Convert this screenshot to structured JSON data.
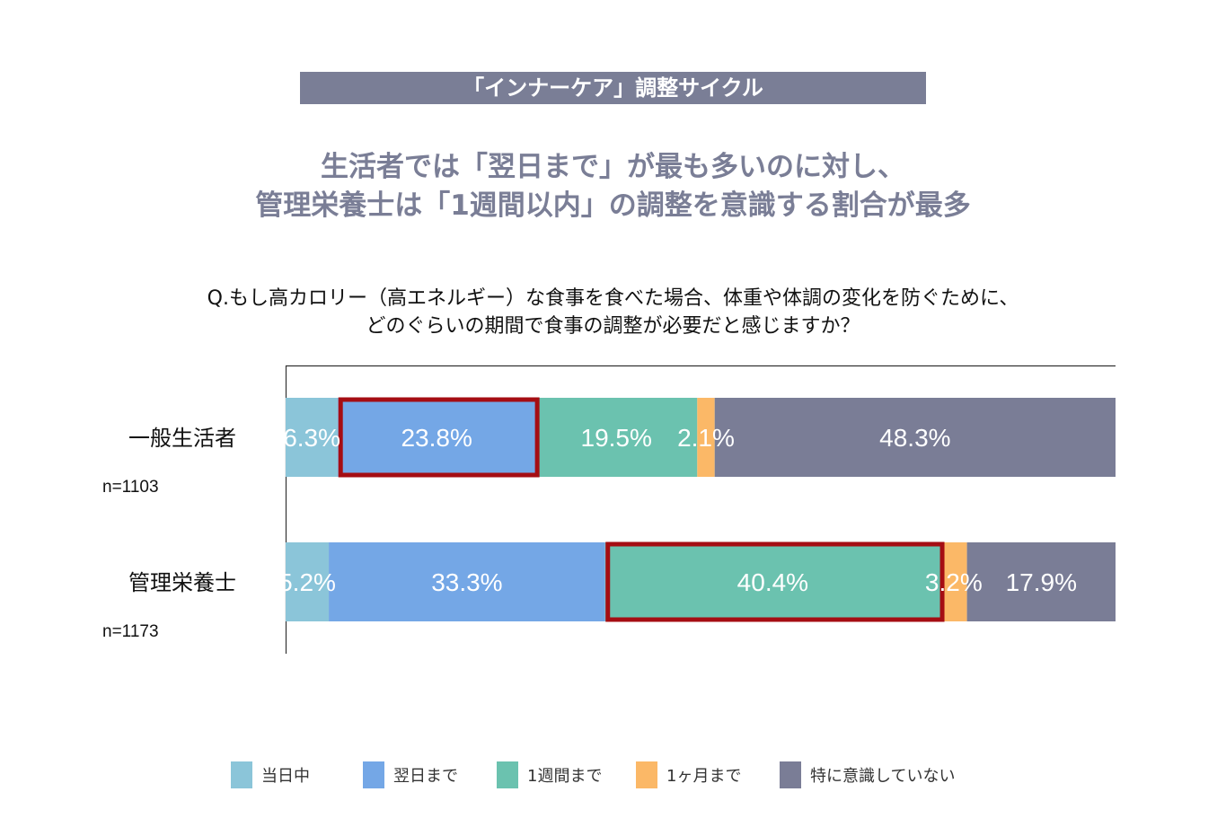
{
  "header": {
    "title": "「インナーケア」調整サイクル",
    "headline_line1": "生活者では「翌日まで」が最も多いのに対し、",
    "headline_line2": "管理栄養士は「1週間以内」の調整を意識する割合が最多"
  },
  "question": {
    "line1": "Q.もし高カロリー（高エネルギー）な食事を食べた場合、体重や体調の変化を防ぐために、",
    "line2": "どのぐらいの期間で食事の調整が必要だと感じますか？"
  },
  "chart_data": {
    "type": "bar",
    "orientation": "horizontal",
    "stacked": true,
    "xlim": [
      0,
      100
    ],
    "unit": "%",
    "categories": [
      "一般生活者",
      "管理栄養士"
    ],
    "sample_sizes": [
      "n=1103",
      "n=1173"
    ],
    "series": [
      {
        "name": "当日中",
        "color": "#8bc5d9",
        "values": [
          6.3,
          5.2
        ],
        "labels": [
          "6.3%",
          "5.2%"
        ]
      },
      {
        "name": "翌日まで",
        "color": "#74a7e6",
        "values": [
          23.8,
          33.3
        ],
        "labels": [
          "23.8%",
          "33.3%"
        ]
      },
      {
        "name": "1週間まで",
        "color": "#6bc2af",
        "values": [
          19.5,
          40.4
        ],
        "labels": [
          "19.5%",
          "40.4%"
        ]
      },
      {
        "name": "1ヶ月まで",
        "color": "#fbb867",
        "values": [
          2.1,
          3.2
        ],
        "labels": [
          "2.1%",
          "3.2%"
        ]
      },
      {
        "name": "特に意識していない",
        "color": "#7a7d96",
        "values": [
          48.3,
          17.9
        ],
        "labels": [
          "48.3%",
          "17.9%"
        ]
      }
    ],
    "highlights": [
      {
        "category": "一般生活者",
        "series": "翌日まで"
      },
      {
        "category": "管理栄養士",
        "series": "1週間まで"
      }
    ],
    "highlight_color": "#a50d13",
    "legend_position": "bottom"
  }
}
